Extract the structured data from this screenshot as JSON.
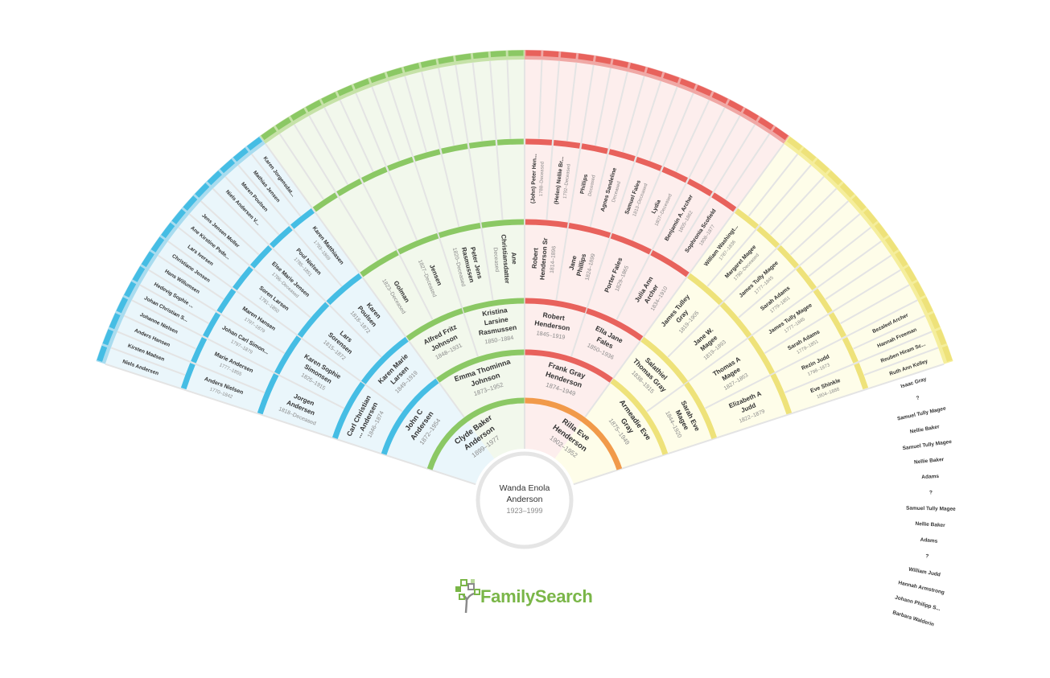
{
  "root": {
    "name": "Wanda Enola Anderson",
    "dates": "1923–1999"
  },
  "colors": {
    "green": "#8bc864",
    "green_light": "#c6e2a8",
    "green_fill": "#f2f8ec",
    "red": "#e8625c",
    "red_light": "#f0a8a5",
    "red_fill": "#fdeeed",
    "blue": "#45bde4",
    "blue_light": "#a9dcef",
    "blue_fill": "#eaf6fb",
    "yellow": "#eee27a",
    "yellow_light": "#f5ee9c",
    "yellow_fill": "#fefde9",
    "orange": "#f19a4a",
    "divider": "#e4e4e4"
  },
  "g1": [
    {
      "name": "Clyde Baker Anderson",
      "dates": "1899–1977"
    },
    {
      "name": "Rilla Eve Henderson",
      "dates": "1902–1952"
    }
  ],
  "g2": [
    {
      "name": "John C Andersen",
      "dates": "1872–1954"
    },
    {
      "name": "Emma Thominna Johnson",
      "dates": "1873–1952"
    },
    {
      "name": "Frank Gray Henderson",
      "dates": "1874–1949"
    },
    {
      "name": "Armeadie Eve Gray",
      "dates": "1875–1949"
    }
  ],
  "g3": [
    {
      "name": "Carl Christian ... Andersen",
      "dates": "1846–1874"
    },
    {
      "name": "Karen Marie Larsen",
      "dates": "1849–1919"
    },
    {
      "name": "Alfred Fritz Johnson",
      "dates": "1848–1931"
    },
    {
      "name": "Kristina Larsine Rasmussen",
      "dates": "1850–1884"
    },
    {
      "name": "Robert Henderson",
      "dates": "1845–1919"
    },
    {
      "name": "Ella Jane Fales",
      "dates": "1850–1936"
    },
    {
      "name": "Salathiel Thomas Gray",
      "dates": "1838–1915"
    },
    {
      "name": "Sarah Eve Magee",
      "dates": "1844–1920"
    }
  ],
  "g4": [
    {
      "name": "Jorgen Andersen",
      "dates": "1818–Deceased"
    },
    {
      "name": "Karen Sophie Simonsen",
      "dates": "1825–1915"
    },
    {
      "name": "Lars Sorensen",
      "dates": "1815–1872"
    },
    {
      "name": "Karen Poulsen",
      "dates": "1818–1872"
    },
    {
      "name": "Golman",
      "dates": "1823–Deceased"
    },
    {
      "name": "Jensen",
      "dates": "1827–Deceased"
    },
    {
      "name": "Peter Jens Rasmussen",
      "dates": "1820–Deceased"
    },
    {
      "name": "Ane Christiansdatter",
      "dates": "Deceased"
    },
    {
      "name": "Robert Henderson Sr",
      "dates": "1814–1896"
    },
    {
      "name": "Jane Phillips",
      "dates": "1824–1899"
    },
    {
      "name": "Porter Fales",
      "dates": "1829–1865"
    },
    {
      "name": "Julia Ann Archer",
      "dates": "1834–1910"
    },
    {
      "name": "James Tulley Gray",
      "dates": "1819–1905"
    },
    {
      "name": "Jane W. Magee",
      "dates": "1819–1893"
    },
    {
      "name": "Thomas A Magee",
      "dates": "1827–1863"
    },
    {
      "name": "Elizabeth A Judd",
      "dates": "1822–1879"
    }
  ],
  "g5": [
    {
      "name": "Anders Nielsen",
      "dates": "1770–1842"
    },
    {
      "name": "Marie Andersen",
      "dates": "1777–1855"
    },
    {
      "name": "Johan Carl Simon...",
      "dates": "1797–1879"
    },
    {
      "name": "Maren Hansen",
      "dates": "1797–1879"
    },
    {
      "name": "Soren Larsen",
      "dates": "1781–1850"
    },
    {
      "name": "Else Marie Jensen",
      "dates": "1786–Deceased"
    },
    {
      "name": "Poul Nielsen",
      "dates": "1785–1851"
    },
    {
      "name": "Karen Matthiasen",
      "dates": "1793–1869"
    },
    {
      "name": "",
      "dates": ""
    },
    {
      "name": "",
      "dates": ""
    },
    {
      "name": "",
      "dates": ""
    },
    {
      "name": "",
      "dates": ""
    },
    {
      "name": "",
      "dates": ""
    },
    {
      "name": "",
      "dates": ""
    },
    {
      "name": "",
      "dates": ""
    },
    {
      "name": "",
      "dates": ""
    },
    {
      "name": "(John) Peter Hen...",
      "dates": "1788–Deceased"
    },
    {
      "name": "(Helen) Nellie Br...",
      "dates": "1792–Deceased"
    },
    {
      "name": "Phillips",
      "dates": "Deceased"
    },
    {
      "name": "Agnes Sandeline",
      "dates": "Deceased"
    },
    {
      "name": "Samuel Fales",
      "dates": "1813–Deceased"
    },
    {
      "name": "Lydia",
      "dates": "1807–Deceased"
    },
    {
      "name": "Benjamin A. Archer",
      "dates": "1805–1862"
    },
    {
      "name": "Sophronia Scofield",
      "dates": "1808–1877"
    },
    {
      "name": "William Washingt...",
      "dates": "1787–1836"
    },
    {
      "name": "Margaret Magee",
      "dates": "1780–Deceased"
    },
    {
      "name": "James Tully Magee",
      "dates": "1777–1845"
    },
    {
      "name": "Sarah Adams",
      "dates": "1779–1851"
    },
    {
      "name": "James Tully Magee",
      "dates": "1777–1845"
    },
    {
      "name": "Sarah Adams",
      "dates": "1779–1851"
    },
    {
      "name": "Rezin Judd",
      "dates": "1798–1873"
    },
    {
      "name": "Eve Shinkle",
      "dates": "1804–1888"
    }
  ],
  "g6": [
    "Niels Andersen",
    "Kirsten Madsen",
    "Anders Hansen",
    "Johanne Nielsen",
    "Johan Christian S...",
    "Hedevig Sophie ...",
    "Hans Willumsen",
    "Christiane Jensen",
    "Lars Iversen",
    "Ane Kirstine Pede...",
    "Jens Jensen Moller",
    "",
    "Niels Andersen V...",
    "Maren Poulsen",
    "Mathias Jensen",
    "Karen Jorgensdat...",
    "",
    "",
    "",
    "",
    "",
    "",
    "",
    "",
    "",
    "",
    "",
    "",
    "",
    "",
    "",
    "",
    "",
    "",
    "",
    "",
    "",
    "",
    "",
    "",
    "",
    "",
    "",
    "",
    "",
    "",
    "",
    "",
    "",
    "",
    "",
    "",
    "",
    "",
    "",
    "",
    "",
    "",
    "",
    "",
    "Bezaleel Archer",
    "Hannah Freeman",
    "Reuben Hiram Sc...",
    "Ruth Ann Kelley",
    "Isaac Gray",
    "?",
    "Samuel Tully Magee",
    "Nellie Baker",
    "Samuel Tully Magee",
    "Nellie Baker",
    "Adams",
    "?",
    "Samuel Tully Magee",
    "Nellie Baker",
    "Adams",
    "?",
    "William Judd",
    "Hannah Armstrong",
    "Johann Philipp S...",
    "Barbara Walderin"
  ],
  "logo": {
    "text": "FamilySearch"
  }
}
